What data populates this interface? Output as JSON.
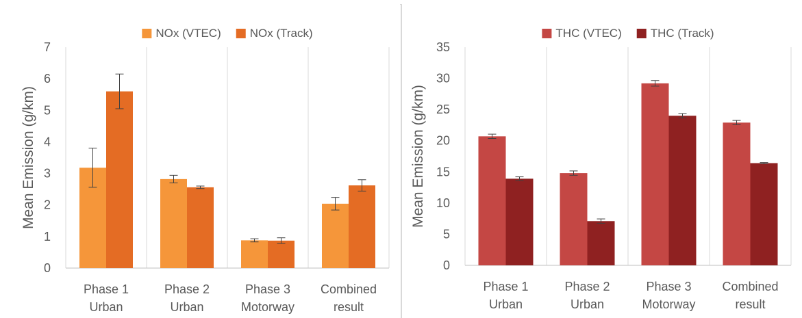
{
  "chart_data": [
    {
      "type": "bar",
      "title": "",
      "xlabel": "",
      "ylabel": "Mean Emission (g/km)",
      "ylim": [
        0,
        7
      ],
      "yticks": [
        0,
        1,
        2,
        3,
        4,
        5,
        6,
        7
      ],
      "grid": "vertical between categories",
      "legend": "top-center",
      "categories": [
        [
          "Phase 1",
          "Urban"
        ],
        [
          "Phase 2",
          "Urban"
        ],
        [
          "Phase 3",
          "Motorway"
        ],
        [
          "Combined",
          "result"
        ]
      ],
      "series": [
        {
          "name": "NOx (VTEC)",
          "color": "#f5963a",
          "values": [
            3.18,
            2.82,
            0.88,
            2.04
          ],
          "errors": [
            0.62,
            0.12,
            0.05,
            0.2
          ]
        },
        {
          "name": "NOx (Track)",
          "color": "#e46c24",
          "values": [
            5.6,
            2.56,
            0.87,
            2.62
          ],
          "errors": [
            0.55,
            0.04,
            0.09,
            0.18
          ]
        }
      ]
    },
    {
      "type": "bar",
      "title": "",
      "xlabel": "",
      "ylabel": "Mean Emission (g/km)",
      "ylim": [
        0,
        35
      ],
      "yticks": [
        0,
        5,
        10,
        15,
        20,
        25,
        30,
        35
      ],
      "grid": "vertical between categories",
      "legend": "top-center",
      "categories": [
        [
          "Phase 1",
          "Urban"
        ],
        [
          "Phase 2",
          "Urban"
        ],
        [
          "Phase 3",
          "Motorway"
        ],
        [
          "Combined",
          "result"
        ]
      ],
      "series": [
        {
          "name": "THC (VTEC)",
          "color": "#c44744",
          "values": [
            20.7,
            14.8,
            29.2,
            22.9
          ],
          "errors": [
            0.35,
            0.35,
            0.45,
            0.35
          ]
        },
        {
          "name": "THC (Track)",
          "color": "#8f2121",
          "values": [
            13.9,
            7.1,
            24.0,
            16.4
          ],
          "errors": [
            0.3,
            0.35,
            0.35,
            0.1
          ]
        }
      ]
    }
  ]
}
